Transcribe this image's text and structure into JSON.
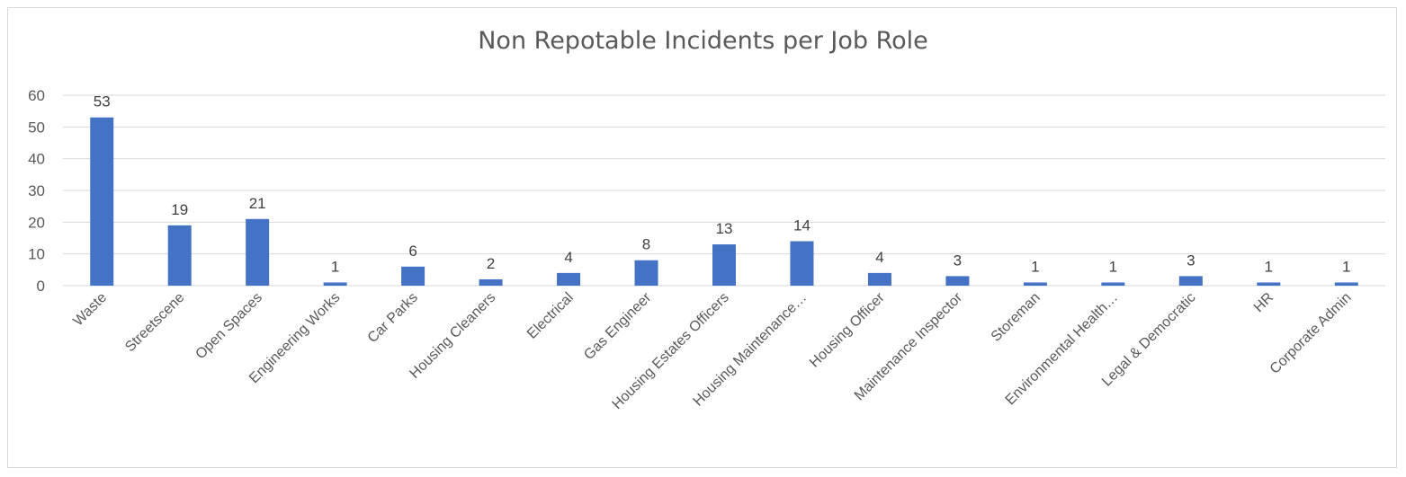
{
  "chart_data": {
    "type": "bar",
    "title": "Non Repotable Incidents per Job Role",
    "categories": [
      "Waste",
      "Streetscene",
      "Open Spaces",
      "Engineering Works",
      "Car Parks",
      "Housing Cleaners",
      "Electrical",
      "Gas Engineer",
      "Housing Estates Officers",
      "Housing Maintenance…",
      "Housing Officer",
      "Maintenance Inspector",
      "Storeman",
      "Environmental Health…",
      "Legal & Democratic",
      "HR",
      "Corporate Admin"
    ],
    "values": [
      53,
      19,
      21,
      1,
      6,
      2,
      4,
      8,
      13,
      14,
      4,
      3,
      1,
      1,
      3,
      1,
      1
    ],
    "yticks": [
      "0",
      "10",
      "20",
      "30",
      "40",
      "50",
      "60"
    ],
    "ylim": [
      0,
      60
    ],
    "grid": true,
    "bar_color": "#4472c4",
    "gridline_color": "#d9d9d9"
  }
}
